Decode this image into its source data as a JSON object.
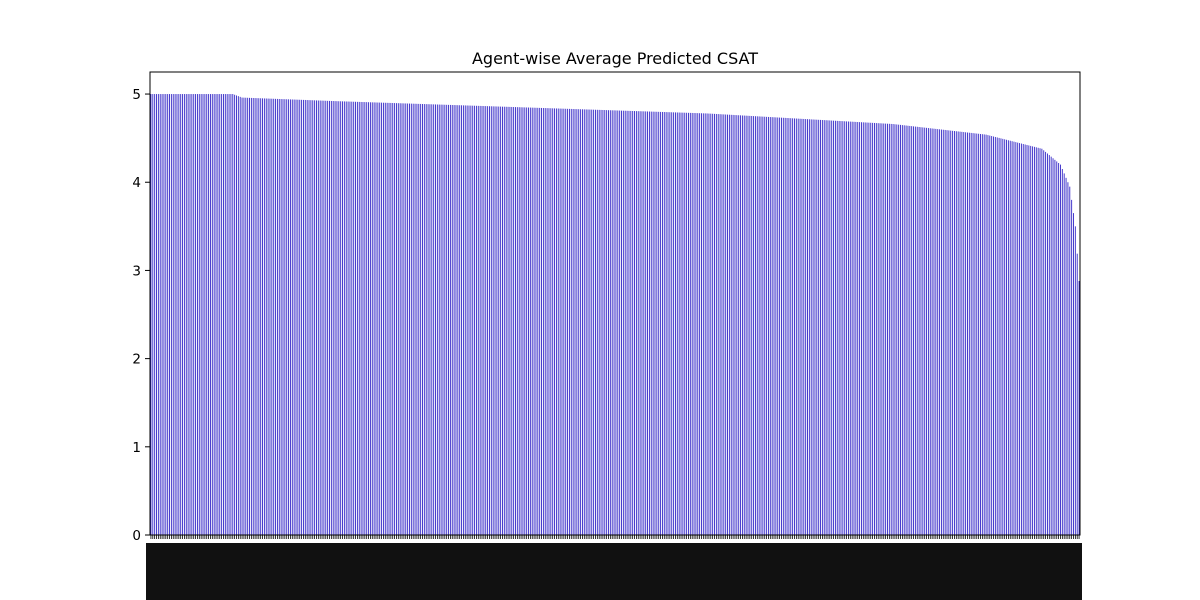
{
  "chart_data": {
    "type": "bar",
    "title": "Agent-wise Average Predicted CSAT",
    "xlabel": "",
    "ylabel": "",
    "ylim": [
      0,
      5.25
    ],
    "yticks": [
      0,
      1,
      2,
      3,
      4,
      5
    ],
    "grid": false,
    "legend": "none",
    "bar_color": "#3b2fc9",
    "bar_count": 500,
    "value_profile": [
      {
        "rank": 1,
        "value": 5.0
      },
      {
        "rank": 45,
        "value": 5.0
      },
      {
        "rank": 50,
        "value": 4.96
      },
      {
        "rank": 100,
        "value": 4.92
      },
      {
        "rank": 200,
        "value": 4.85
      },
      {
        "rank": 300,
        "value": 4.78
      },
      {
        "rank": 400,
        "value": 4.66
      },
      {
        "rank": 450,
        "value": 4.54
      },
      {
        "rank": 480,
        "value": 4.38
      },
      {
        "rank": 490,
        "value": 4.2
      },
      {
        "rank": 495,
        "value": 3.95
      },
      {
        "rank": 498,
        "value": 3.5
      },
      {
        "rank": 500,
        "value": 2.88
      }
    ]
  }
}
